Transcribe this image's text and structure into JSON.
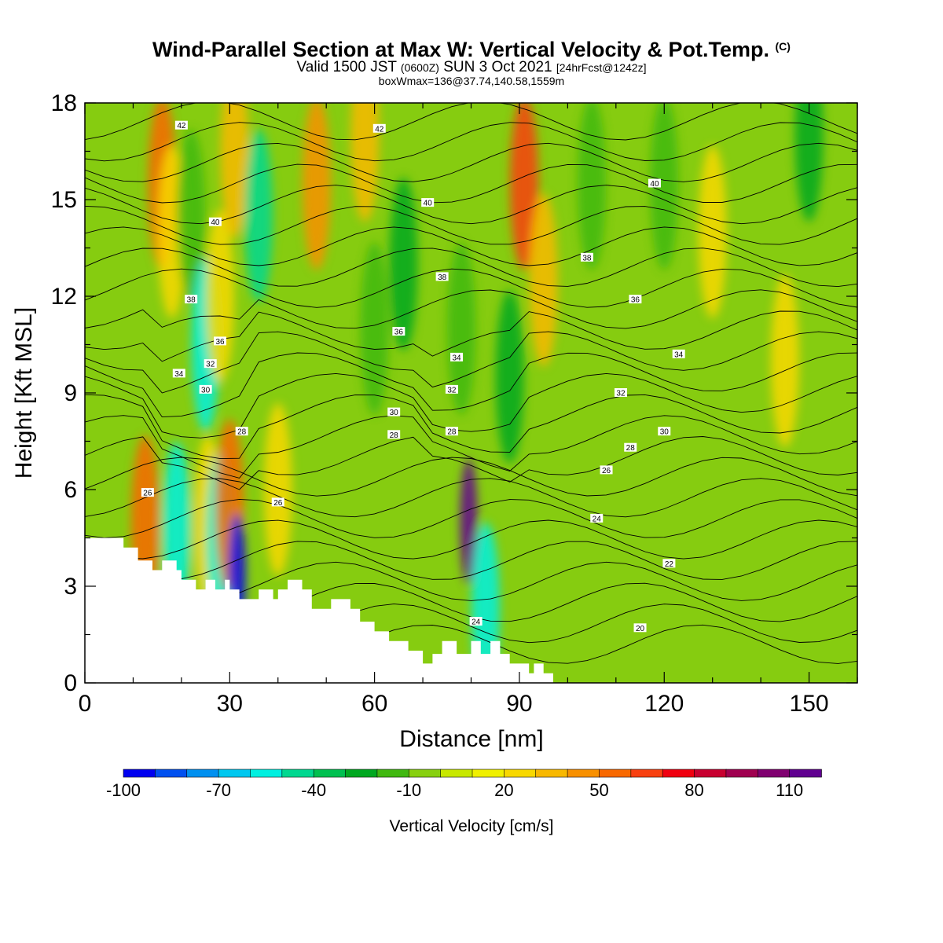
{
  "header": {
    "title": "Wind-Parallel Section at Max W: Vertical Velocity & Pot.Temp.",
    "copyright": "(C)",
    "valid_a": "Valid 1500 JST",
    "valid_b": "(0600Z)",
    "valid_c": "SUN 3 Oct 2021",
    "valid_d": "[24hrFcst@1242z]",
    "box": "boxWmax=136@37.74,140.58,1559m"
  },
  "chart_data": {
    "type": "heatmap",
    "xlabel": "Distance [nm]",
    "ylabel": "Height [Kft MSL]",
    "xlim": [
      0,
      160
    ],
    "ylim": [
      0,
      18
    ],
    "xticks": [
      0,
      30,
      60,
      90,
      120,
      150
    ],
    "yticks": [
      0,
      3,
      6,
      9,
      12,
      15,
      18
    ],
    "colorbar": {
      "label": "Vertical Velocity [cm/s]",
      "ticks": [
        "-100",
        "-70",
        "-40",
        "-10",
        "20",
        "50",
        "80",
        "110"
      ],
      "colors": [
        "#0000f0",
        "#0050f0",
        "#0090f0",
        "#00c8f0",
        "#00f0e0",
        "#00d890",
        "#00c050",
        "#00a820",
        "#40b810",
        "#88d010",
        "#c8e800",
        "#f0f000",
        "#f8d800",
        "#f8b800",
        "#f89000",
        "#f86800",
        "#f84010",
        "#f00010",
        "#c80030",
        "#a00050",
        "#800070",
        "#600090"
      ]
    },
    "terrain_profile": [
      [
        0,
        4.5
      ],
      [
        8,
        4.5
      ],
      [
        8,
        4.2
      ],
      [
        11,
        4.2
      ],
      [
        11,
        3.8
      ],
      [
        14,
        3.8
      ],
      [
        14,
        3.5
      ],
      [
        16,
        3.5
      ],
      [
        16,
        3.8
      ],
      [
        19,
        3.8
      ],
      [
        19,
        3.5
      ],
      [
        20,
        3.5
      ],
      [
        20,
        3.2
      ],
      [
        23,
        3.2
      ],
      [
        23,
        2.9
      ],
      [
        25,
        2.9
      ],
      [
        25,
        3.2
      ],
      [
        27,
        3.2
      ],
      [
        27,
        2.9
      ],
      [
        29,
        2.9
      ],
      [
        29,
        3.2
      ],
      [
        30,
        3.2
      ],
      [
        30,
        2.9
      ],
      [
        32,
        2.9
      ],
      [
        32,
        2.6
      ],
      [
        36,
        2.6
      ],
      [
        36,
        2.9
      ],
      [
        39,
        2.9
      ],
      [
        39,
        2.6
      ],
      [
        40,
        2.6
      ],
      [
        40,
        2.9
      ],
      [
        42,
        2.9
      ],
      [
        42,
        3.2
      ],
      [
        45,
        3.2
      ],
      [
        45,
        2.9
      ],
      [
        47,
        2.9
      ],
      [
        47,
        2.3
      ],
      [
        51,
        2.3
      ],
      [
        51,
        2.6
      ],
      [
        55,
        2.6
      ],
      [
        55,
        2.3
      ],
      [
        57,
        2.3
      ],
      [
        57,
        1.9
      ],
      [
        60,
        1.9
      ],
      [
        60,
        1.6
      ],
      [
        63,
        1.6
      ],
      [
        63,
        1.3
      ],
      [
        67,
        1.3
      ],
      [
        67,
        1.0
      ],
      [
        70,
        1.0
      ],
      [
        70,
        0.6
      ],
      [
        72,
        0.6
      ],
      [
        72,
        0.9
      ],
      [
        74,
        0.9
      ],
      [
        74,
        1.3
      ],
      [
        77,
        1.3
      ],
      [
        77,
        0.9
      ],
      [
        80,
        0.9
      ],
      [
        80,
        1.3
      ],
      [
        82,
        1.3
      ],
      [
        82,
        0.9
      ],
      [
        84,
        0.9
      ],
      [
        84,
        1.3
      ],
      [
        86,
        1.3
      ],
      [
        86,
        0.9
      ],
      [
        88,
        0.9
      ],
      [
        88,
        0.6
      ],
      [
        92,
        0.6
      ],
      [
        92,
        0.3
      ],
      [
        93,
        0.3
      ],
      [
        93,
        0.6
      ],
      [
        95,
        0.6
      ],
      [
        95,
        0.3
      ],
      [
        97,
        0.3
      ],
      [
        97,
        0
      ],
      [
        100,
        0
      ]
    ],
    "velocity_cells": [
      {
        "x": 12.5,
        "y": 5.0,
        "value": 50
      },
      {
        "x": 16,
        "y": 15.5,
        "value": 50
      },
      {
        "x": 18,
        "y": 14.0,
        "value": 20
      },
      {
        "x": 19,
        "y": 4.8,
        "value": -60
      },
      {
        "x": 22,
        "y": 14.5,
        "value": -20
      },
      {
        "x": 25,
        "y": 10.5,
        "value": -55
      },
      {
        "x": 25.5,
        "y": 5.0,
        "value": 20
      },
      {
        "x": 28,
        "y": 12.0,
        "value": 20
      },
      {
        "x": 28,
        "y": 4.5,
        "value": -60
      },
      {
        "x": 30,
        "y": 5.5,
        "value": 50
      },
      {
        "x": 31,
        "y": 16.5,
        "value": 35
      },
      {
        "x": 31.5,
        "y": 3.3,
        "value": -95
      },
      {
        "x": 36,
        "y": 14.5,
        "value": -50
      },
      {
        "x": 40,
        "y": 6.0,
        "value": 20
      },
      {
        "x": 48,
        "y": 15.5,
        "value": 40
      },
      {
        "x": 58,
        "y": 17,
        "value": 30
      },
      {
        "x": 60,
        "y": 11,
        "value": -20
      },
      {
        "x": 66,
        "y": 13,
        "value": -25
      },
      {
        "x": 78,
        "y": 11,
        "value": -20
      },
      {
        "x": 79.5,
        "y": 5.0,
        "value": 110
      },
      {
        "x": 83,
        "y": 2.3,
        "value": -55
      },
      {
        "x": 91,
        "y": 15.5,
        "value": 60
      },
      {
        "x": 95,
        "y": 12.5,
        "value": 30
      },
      {
        "x": 88,
        "y": 9.5,
        "value": -25
      },
      {
        "x": 105,
        "y": 15.5,
        "value": -20
      },
      {
        "x": 120,
        "y": 15.5,
        "value": -20
      },
      {
        "x": 130,
        "y": 14,
        "value": 20
      },
      {
        "x": 150,
        "y": 17,
        "value": -30
      },
      {
        "x": 145,
        "y": 10,
        "value": 20
      }
    ],
    "theta_labels": [
      {
        "text": "42",
        "x": 20,
        "y": 17.3
      },
      {
        "text": "42",
        "x": 61,
        "y": 17.2
      },
      {
        "text": "40",
        "x": 27,
        "y": 14.3
      },
      {
        "text": "40",
        "x": 71,
        "y": 14.9
      },
      {
        "text": "40",
        "x": 118,
        "y": 15.5
      },
      {
        "text": "38",
        "x": 22,
        "y": 11.9
      },
      {
        "text": "38",
        "x": 74,
        "y": 12.6
      },
      {
        "text": "38",
        "x": 104,
        "y": 13.2
      },
      {
        "text": "36",
        "x": 28,
        "y": 10.6
      },
      {
        "text": "36",
        "x": 65,
        "y": 10.9
      },
      {
        "text": "36",
        "x": 114,
        "y": 11.9
      },
      {
        "text": "34",
        "x": 19.5,
        "y": 9.6
      },
      {
        "text": "34",
        "x": 77,
        "y": 10.1
      },
      {
        "text": "34",
        "x": 123,
        "y": 10.2
      },
      {
        "text": "32",
        "x": 26,
        "y": 9.9
      },
      {
        "text": "32",
        "x": 76,
        "y": 9.1
      },
      {
        "text": "32",
        "x": 111,
        "y": 9.0
      },
      {
        "text": "30",
        "x": 25,
        "y": 9.1
      },
      {
        "text": "30",
        "x": 64,
        "y": 8.4
      },
      {
        "text": "30",
        "x": 120,
        "y": 7.8
      },
      {
        "text": "28",
        "x": 32.5,
        "y": 7.8
      },
      {
        "text": "28",
        "x": 64,
        "y": 7.7
      },
      {
        "text": "28",
        "x": 76,
        "y": 7.8
      },
      {
        "text": "28",
        "x": 113,
        "y": 7.3
      },
      {
        "text": "26",
        "x": 13,
        "y": 5.9
      },
      {
        "text": "26",
        "x": 108,
        "y": 6.6
      },
      {
        "text": "26",
        "x": 40,
        "y": 5.6
      },
      {
        "text": "24",
        "x": 106,
        "y": 5.1
      },
      {
        "text": "24",
        "x": 81,
        "y": 1.9
      },
      {
        "text": "22",
        "x": 121,
        "y": 3.7
      },
      {
        "text": "20",
        "x": 115,
        "y": 1.7
      }
    ]
  }
}
